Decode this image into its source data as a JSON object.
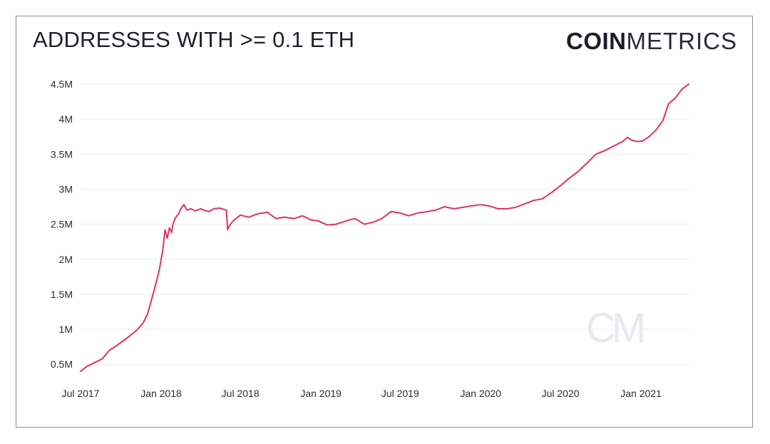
{
  "title": "ADDRESSES WITH >= 0.1 ETH",
  "logo": {
    "bold": "COIN",
    "light": "METRICS"
  },
  "watermark": "CM",
  "colors": {
    "line": "#e0345a",
    "grid": "#ececec",
    "frame": "#8f8f8f"
  },
  "chart_data": {
    "type": "line",
    "title": "ADDRESSES WITH >= 0.1 ETH",
    "xlabel": "",
    "ylabel": "",
    "xlim": [
      "2017-07-01",
      "2021-04-20"
    ],
    "ylim": [
      0.38,
      4.5
    ],
    "grid": true,
    "legend": "none",
    "y_ticks": [
      {
        "value": 0.5,
        "label": "0.5M"
      },
      {
        "value": 1,
        "label": "1M"
      },
      {
        "value": 1.5,
        "label": "1.5M"
      },
      {
        "value": 2,
        "label": "2M"
      },
      {
        "value": 2.5,
        "label": "2.5M"
      },
      {
        "value": 3,
        "label": "3M"
      },
      {
        "value": 3.5,
        "label": "3.5M"
      },
      {
        "value": 4,
        "label": "4M"
      },
      {
        "value": 4.5,
        "label": "4.5M"
      }
    ],
    "x_ticks": [
      {
        "value": "2017-07-01",
        "label": "Jul 2017"
      },
      {
        "value": "2018-01-01",
        "label": "Jan 2018"
      },
      {
        "value": "2018-07-01",
        "label": "Jul 2018"
      },
      {
        "value": "2019-01-01",
        "label": "Jan 2019"
      },
      {
        "value": "2019-07-01",
        "label": "Jul 2019"
      },
      {
        "value": "2020-01-01",
        "label": "Jan 2020"
      },
      {
        "value": "2020-07-01",
        "label": "Jul 2020"
      },
      {
        "value": "2021-01-01",
        "label": "Jan 2021"
      }
    ],
    "series": [
      {
        "x": [
          "2017-07-01",
          "2017-07-15",
          "2017-08-01",
          "2017-08-20",
          "2017-09-05",
          "2017-09-20",
          "2017-10-05",
          "2017-10-20",
          "2017-11-05",
          "2017-11-20",
          "2017-12-01",
          "2017-12-10",
          "2017-12-20",
          "2017-12-28",
          "2018-01-05",
          "2018-01-10",
          "2018-01-15",
          "2018-01-20",
          "2018-01-25",
          "2018-01-28",
          "2018-02-02",
          "2018-02-06",
          "2018-02-10",
          "2018-02-15",
          "2018-02-22",
          "2018-03-01",
          "2018-03-10",
          "2018-03-20",
          "2018-04-01",
          "2018-04-10",
          "2018-04-20",
          "2018-05-01",
          "2018-05-15",
          "2018-05-30",
          "2018-06-02",
          "2018-06-05",
          "2018-06-15",
          "2018-07-01",
          "2018-07-20",
          "2018-08-10",
          "2018-09-01",
          "2018-09-20",
          "2018-10-10",
          "2018-11-01",
          "2018-11-20",
          "2018-12-10",
          "2018-12-25",
          "2019-01-15",
          "2019-02-05",
          "2019-03-01",
          "2019-03-20",
          "2019-04-10",
          "2019-05-01",
          "2019-05-20",
          "2019-06-10",
          "2019-07-01",
          "2019-07-20",
          "2019-08-10",
          "2019-09-01",
          "2019-09-20",
          "2019-10-10",
          "2019-11-01",
          "2019-11-20",
          "2019-12-10",
          "2020-01-01",
          "2020-01-20",
          "2020-02-10",
          "2020-03-01",
          "2020-03-20",
          "2020-04-10",
          "2020-05-01",
          "2020-05-20",
          "2020-06-10",
          "2020-07-01",
          "2020-07-20",
          "2020-08-10",
          "2020-09-01",
          "2020-09-20",
          "2020-10-10",
          "2020-11-01",
          "2020-11-20",
          "2020-12-01",
          "2020-12-10",
          "2020-12-25",
          "2021-01-05",
          "2021-01-20",
          "2021-02-05",
          "2021-02-20",
          "2021-03-05",
          "2021-03-20",
          "2021-04-05",
          "2021-04-20"
        ],
        "values": [
          0.4,
          0.47,
          0.52,
          0.58,
          0.7,
          0.76,
          0.83,
          0.9,
          0.98,
          1.08,
          1.22,
          1.42,
          1.65,
          1.85,
          2.15,
          2.42,
          2.3,
          2.45,
          2.38,
          2.5,
          2.58,
          2.62,
          2.65,
          2.72,
          2.78,
          2.7,
          2.72,
          2.69,
          2.72,
          2.7,
          2.68,
          2.72,
          2.73,
          2.7,
          2.42,
          2.47,
          2.55,
          2.63,
          2.6,
          2.65,
          2.67,
          2.58,
          2.6,
          2.58,
          2.62,
          2.56,
          2.55,
          2.49,
          2.5,
          2.55,
          2.58,
          2.5,
          2.53,
          2.58,
          2.68,
          2.66,
          2.62,
          2.66,
          2.68,
          2.7,
          2.75,
          2.72,
          2.74,
          2.76,
          2.78,
          2.76,
          2.72,
          2.72,
          2.74,
          2.79,
          2.84,
          2.86,
          2.95,
          3.05,
          3.15,
          3.25,
          3.38,
          3.5,
          3.55,
          3.62,
          3.68,
          3.74,
          3.7,
          3.68,
          3.69,
          3.75,
          3.85,
          3.98,
          4.22,
          4.3,
          4.43,
          4.5
        ]
      }
    ]
  }
}
